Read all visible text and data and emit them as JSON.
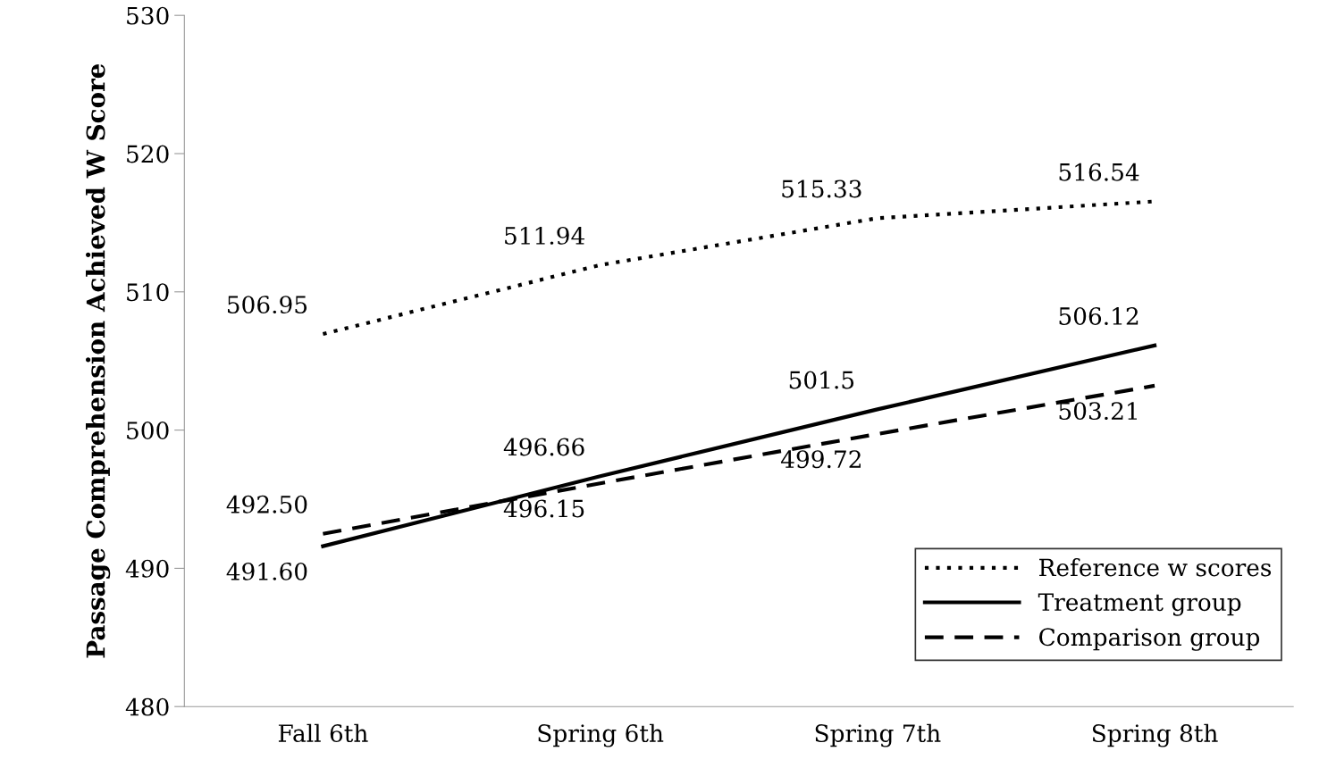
{
  "chart_data": {
    "type": "line",
    "ylabel": "Passage Comprehension Achieved W Score",
    "categories": [
      "Fall 6th",
      "Spring 6th",
      "Spring 7th",
      "Spring 8th"
    ],
    "series": [
      {
        "name": "Reference w scores",
        "color": "#000000",
        "line_style": "dotted",
        "values": [
          506.95,
          511.94,
          515.33,
          516.54
        ],
        "value_labels": [
          "506.95",
          "511.94",
          "515.33",
          "516.54"
        ]
      },
      {
        "name": "Treatment group",
        "color": "#000000",
        "line_style": "solid",
        "values": [
          491.6,
          496.66,
          501.5,
          506.12
        ],
        "value_labels": [
          "491.60",
          "496.66",
          "501.5",
          "506.12"
        ]
      },
      {
        "name": "Comparison group",
        "color": "#000000",
        "line_style": "dashed",
        "values": [
          492.5,
          496.15,
          499.72,
          503.21
        ],
        "value_labels": [
          "492.50",
          "496.15",
          "499.72",
          "503.21"
        ]
      }
    ],
    "ylim": [
      480,
      530
    ],
    "yticks": [
      480,
      490,
      500,
      510,
      520,
      530
    ],
    "grid": false,
    "legend": "bottom right",
    "marker": "none"
  }
}
